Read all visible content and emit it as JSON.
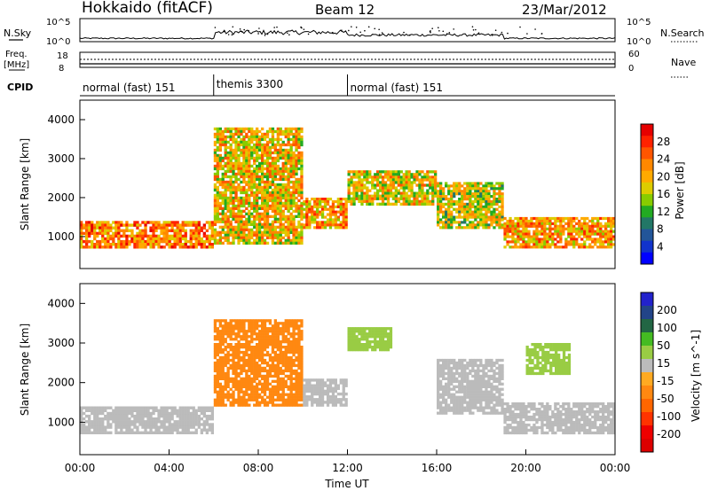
{
  "header": {
    "station": "Hokkaido (fitACF)",
    "beam": "Beam 12",
    "date": "23/Mar/2012"
  },
  "top_panels": {
    "nsky_label": "N.Sky",
    "nsearch_label": "N.Search",
    "freq_label_line1": "Freq.",
    "freq_label_line2": "[MHz]",
    "nave_label": "Nave",
    "cpid_label": "CPID",
    "noise_ticks": [
      "10^5",
      "10^0"
    ],
    "noise_ticks_right": [
      "10^5",
      "10^0"
    ],
    "freq_ticks": [
      "18",
      "8"
    ],
    "nave_ticks": [
      "60",
      "0"
    ],
    "cpid_segments": [
      {
        "label": "normal (fast) 151",
        "start_hour": 0,
        "end_hour": 6
      },
      {
        "label": "themis 3300",
        "start_hour": 6,
        "end_hour": 12
      },
      {
        "label": "normal (fast) 151",
        "start_hour": 12,
        "end_hour": 24
      }
    ]
  },
  "x_axis": {
    "label": "Time UT",
    "ticks": [
      "00:00",
      "04:00",
      "08:00",
      "12:00",
      "16:00",
      "20:00",
      "00:00"
    ]
  },
  "power_colorbar": {
    "label": "Power [dB]",
    "ticks": [
      "28",
      "24",
      "20",
      "16",
      "12",
      "8",
      "4"
    ],
    "colors": [
      "#e60000",
      "#ff2200",
      "#ff5500",
      "#ff8800",
      "#ffaa00",
      "#ddcc00",
      "#88cc00",
      "#22aa22",
      "#227766",
      "#225599",
      "#1133cc",
      "#0000ff"
    ]
  },
  "velocity_colorbar": {
    "label": "Velocity [m s^-1]",
    "ticks": [
      "200",
      "100",
      "50",
      "15",
      "-15",
      "-50",
      "-100",
      "-200"
    ],
    "colors": [
      "#2222cc",
      "#224488",
      "#226644",
      "#44bb22",
      "#99cc44",
      "#bbbbbb",
      "#ffaa22",
      "#ff8811",
      "#ff6600",
      "#ff3300",
      "#ee0000",
      "#dd0000"
    ]
  },
  "chart_data": [
    {
      "type": "heatmap",
      "title": "Power",
      "xlabel": "Time UT",
      "ylabel": "Slant Range [km]",
      "xlim": [
        0,
        24
      ],
      "ylim": [
        180,
        4500
      ],
      "yticks": [
        "1000",
        "2000",
        "3000",
        "4000"
      ],
      "colorbar_range": [
        0,
        32
      ],
      "echo_regions": [
        {
          "start_hour": 0,
          "end_hour": 6,
          "range_km": [
            700,
            1400
          ],
          "power_db": 30
        },
        {
          "start_hour": 6,
          "end_hour": 10,
          "range_km": [
            800,
            3800
          ],
          "power_db": 26
        },
        {
          "start_hour": 10,
          "end_hour": 12,
          "range_km": [
            1200,
            2000
          ],
          "power_db": 28
        },
        {
          "start_hour": 12,
          "end_hour": 16,
          "range_km": [
            1800,
            2700
          ],
          "power_db": 25
        },
        {
          "start_hour": 16,
          "end_hour": 19,
          "range_km": [
            1200,
            2400
          ],
          "power_db": 24
        },
        {
          "start_hour": 19,
          "end_hour": 24,
          "range_km": [
            700,
            1500
          ],
          "power_db": 28
        }
      ]
    },
    {
      "type": "heatmap",
      "title": "Velocity",
      "xlabel": "Time UT",
      "ylabel": "Slant Range [km]",
      "xlim": [
        0,
        24
      ],
      "ylim": [
        180,
        4500
      ],
      "yticks": [
        "1000",
        "2000",
        "3000",
        "4000"
      ],
      "colorbar_range": [
        -250,
        250
      ],
      "echo_regions": [
        {
          "start_hour": 0,
          "end_hour": 6,
          "range_km": [
            700,
            1400
          ],
          "velocity": 0
        },
        {
          "start_hour": 6,
          "end_hour": 10,
          "range_km": [
            1400,
            3600
          ],
          "velocity": -60
        },
        {
          "start_hour": 10,
          "end_hour": 12,
          "range_km": [
            1400,
            2100
          ],
          "velocity": 0
        },
        {
          "start_hour": 12,
          "end_hour": 14,
          "range_km": [
            2800,
            3400
          ],
          "velocity": 60
        },
        {
          "start_hour": 16,
          "end_hour": 19,
          "range_km": [
            1200,
            2600
          ],
          "velocity": 0
        },
        {
          "start_hour": 20,
          "end_hour": 22,
          "range_km": [
            2200,
            3000
          ],
          "velocity": 60
        },
        {
          "start_hour": 19,
          "end_hour": 24,
          "range_km": [
            700,
            1500
          ],
          "velocity": 0
        }
      ]
    }
  ]
}
